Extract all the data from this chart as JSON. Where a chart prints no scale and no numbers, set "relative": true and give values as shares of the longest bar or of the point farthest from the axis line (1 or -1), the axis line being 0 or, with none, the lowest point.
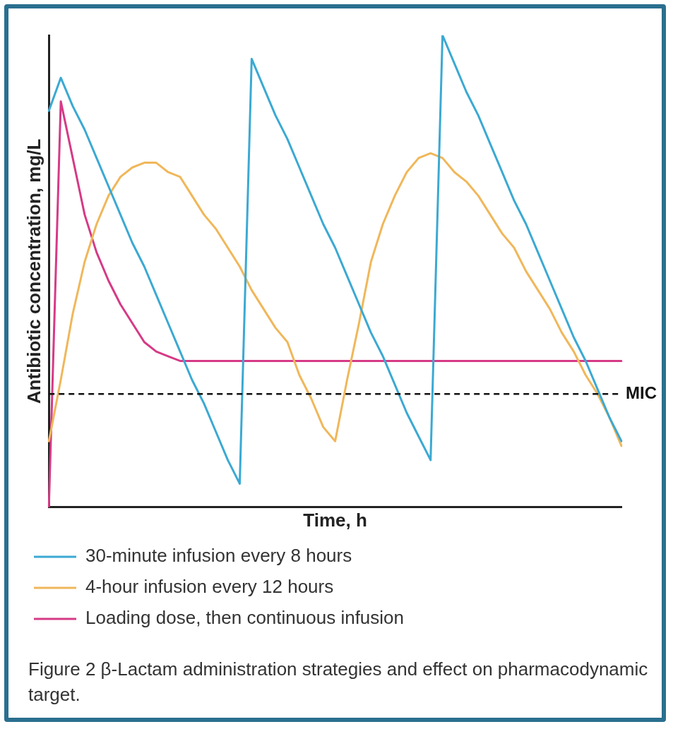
{
  "chart_data": {
    "type": "line",
    "relative": true,
    "xlabel": "Time, h",
    "ylabel": "Antibiotic concentration, mg/L",
    "categories": [
      null,
      null,
      null,
      null,
      null,
      null,
      null,
      null,
      null,
      null,
      null,
      null,
      null,
      null,
      null,
      null,
      null,
      null,
      null,
      null,
      null,
      null,
      null,
      null,
      null,
      null,
      null,
      null,
      null,
      null,
      null,
      null,
      null,
      null,
      null,
      null,
      null,
      null,
      null,
      null,
      null,
      null,
      null,
      null,
      null,
      null,
      null,
      null,
      null
    ],
    "series": [
      {
        "name": "30-minute infusion every 8 hours",
        "color": "#3ba9d3",
        "values": [
          0.84,
          0.91,
          0.85,
          0.8,
          0.74,
          0.68,
          0.62,
          0.56,
          0.51,
          0.45,
          0.39,
          0.33,
          0.27,
          0.22,
          0.16,
          0.1,
          0.05,
          0.95,
          0.89,
          0.83,
          0.78,
          0.72,
          0.66,
          0.6,
          0.55,
          0.49,
          0.43,
          0.37,
          0.32,
          0.26,
          0.2,
          0.15,
          0.1,
          1,
          0.94,
          0.88,
          0.83,
          0.77,
          0.71,
          0.65,
          0.6,
          0.54,
          0.48,
          0.42,
          0.36,
          0.31,
          0.25,
          0.19,
          0.14
        ]
      },
      {
        "name": "4-hour infusion every 12 hours",
        "color": "#f0b75a",
        "values": [
          0.14,
          0.27,
          0.41,
          0.52,
          0.6,
          0.66,
          0.7,
          0.72,
          0.73,
          0.73,
          0.71,
          0.7,
          0.66,
          0.62,
          0.59,
          0.55,
          0.51,
          0.46,
          0.42,
          0.38,
          0.35,
          0.28,
          0.23,
          0.17,
          0.14,
          0.27,
          0.39,
          0.52,
          0.6,
          0.66,
          0.71,
          0.74,
          0.75,
          0.74,
          0.71,
          0.69,
          0.66,
          0.62,
          0.58,
          0.55,
          0.5,
          0.46,
          0.42,
          0.37,
          0.33,
          0.28,
          0.24,
          0.19,
          0.13
        ]
      },
      {
        "name": "Loading dose, then continuous infusion",
        "color": "#d63a86",
        "values": [
          0,
          0.86,
          0.74,
          0.62,
          0.54,
          0.48,
          0.43,
          0.39,
          0.35,
          0.33,
          0.32,
          0.31,
          0.31,
          0.31,
          0.31,
          0.31,
          0.31,
          0.31,
          0.31,
          0.31,
          0.31,
          0.31,
          0.31,
          0.31,
          0.31,
          0.31,
          0.31,
          0.31,
          0.31,
          0.31,
          0.31,
          0.31,
          0.31,
          0.31,
          0.31,
          0.31,
          0.31,
          0.31,
          0.31,
          0.31,
          0.31,
          0.31,
          0.31,
          0.31,
          0.31,
          0.31,
          0.31,
          0.31,
          0.31
        ]
      }
    ],
    "ref_lines": [
      {
        "axis": "y",
        "value": 0.24,
        "label": "MIC",
        "color": "#111111",
        "line_style": "dashed"
      }
    ],
    "legend": "bottom",
    "grid": false,
    "marker": "none",
    "line_style": "solid",
    "annotations": [
      "Figure 2  β-Lactam administration strategies and effect on pharmacodynamic target."
    ]
  }
}
